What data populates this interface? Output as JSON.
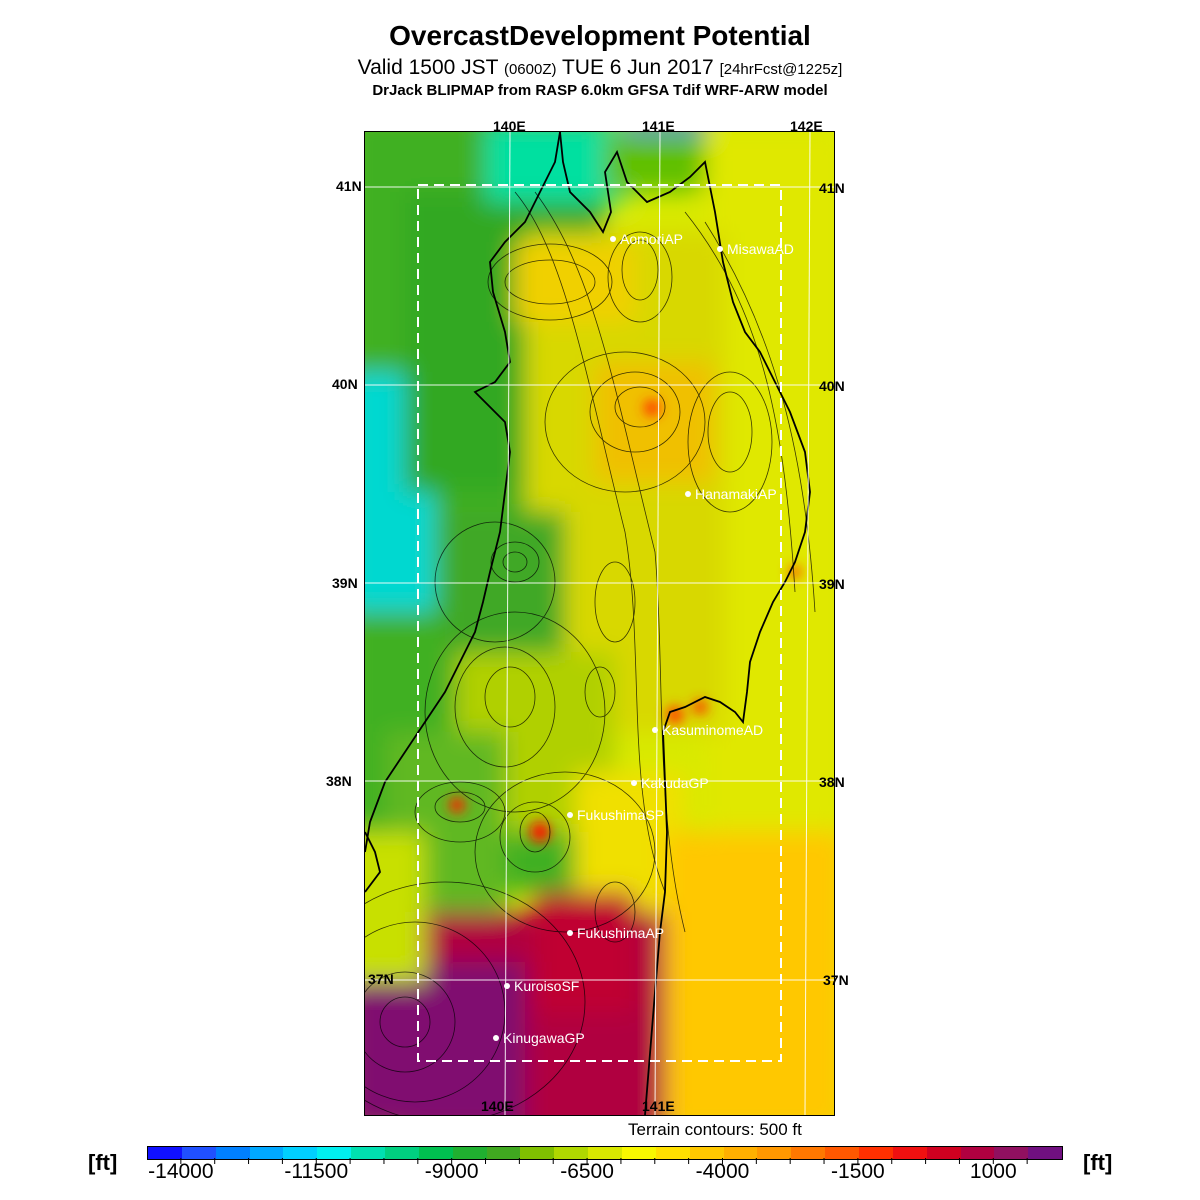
{
  "header": {
    "title": "OvercastDevelopment Potential",
    "valid_prefix": "Valid 1500 JST",
    "valid_zulu": "(0600Z)",
    "valid_date": "TUE 6 Jun 2017",
    "forecast": "[24hrFcst@1225z]",
    "model": "DrJack BLIPMAP from RASP 6.0km GFSA Tdif WRF-ARW model"
  },
  "map": {
    "lon_top_labels": [
      "140E",
      "141E",
      "142E"
    ],
    "lon_bottom_labels": [
      "140E",
      "141E"
    ],
    "lat_labels_left": [
      "41N",
      "40N",
      "39N",
      "38N",
      "37N"
    ],
    "lat_labels_right": [
      "41N",
      "40N",
      "39N",
      "38N",
      "37N"
    ],
    "stations": [
      {
        "name": "AomoriAP"
      },
      {
        "name": "MisawaAD"
      },
      {
        "name": "HanamakiAP"
      },
      {
        "name": "KasuminomeAD"
      },
      {
        "name": "KakudaGP"
      },
      {
        "name": "FukushimaSP"
      },
      {
        "name": "FukushimaAP"
      },
      {
        "name": "KuroisoSF"
      },
      {
        "name": "KinugawaGP"
      }
    ],
    "terrain_note": "Terrain contours: 500 ft"
  },
  "colorbar": {
    "unit_left": "[ft]",
    "unit_right": "[ft]",
    "tick_labels": [
      "-14000",
      "-11500",
      "-9000",
      "-6500",
      "-4000",
      "-1500",
      "1000"
    ],
    "colors": [
      "#1010ff",
      "#2050ff",
      "#0080ff",
      "#00a8ff",
      "#00d0ff",
      "#00f0f0",
      "#00e0b0",
      "#00d080",
      "#00c050",
      "#20b030",
      "#40a820",
      "#80c000",
      "#b0d800",
      "#d8e800",
      "#f8f800",
      "#ffe000",
      "#ffc800",
      "#ffb000",
      "#ff9800",
      "#ff7800",
      "#ff5800",
      "#ff3000",
      "#f01010",
      "#d00020",
      "#b00040",
      "#901060",
      "#701080"
    ]
  }
}
